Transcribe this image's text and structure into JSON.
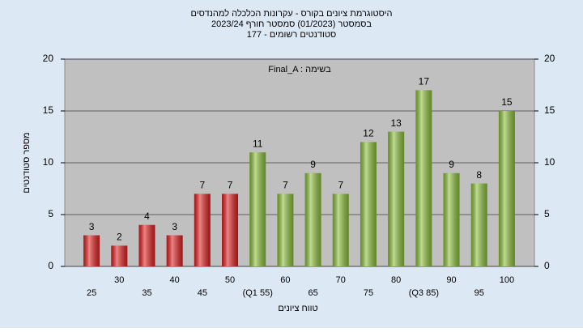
{
  "chart_data": {
    "type": "bar",
    "title": [
      "היסטוגרמת ציונים בקורס - עקרונות הכלכלה למהנדסים",
      "בסמסטר  (01/2023)  סמסטר חורף  2023/24",
      "סטודנטים רשומים - 177"
    ],
    "annotation": "Final_A : בשימה",
    "x_label": "טווח ציונים",
    "y_label": "מספר סטודנטים",
    "categories": [
      "25",
      "30",
      "35",
      "40",
      "45",
      "50",
      "(Q1 55)",
      "60",
      "65",
      "70",
      "75",
      "80",
      "(Q3 85)",
      "90",
      "95",
      "100"
    ],
    "values": [
      3,
      2,
      4,
      3,
      7,
      7,
      11,
      7,
      9,
      7,
      12,
      13,
      17,
      9,
      8,
      15
    ],
    "colors": [
      "#e02020",
      "#e02020",
      "#e02020",
      "#e02020",
      "#e02020",
      "#e02020",
      "#8cbf3a",
      "#8cbf3a",
      "#8cbf3a",
      "#8cbf3a",
      "#8cbf3a",
      "#8cbf3a",
      "#8cbf3a",
      "#8cbf3a",
      "#8cbf3a",
      "#8cbf3a"
    ],
    "ylim": [
      0,
      20
    ],
    "yticks": [
      0,
      5,
      10,
      15,
      20
    ],
    "y2lim": [
      0,
      20
    ],
    "y2ticks": [
      0,
      5,
      10,
      15,
      20
    ]
  }
}
